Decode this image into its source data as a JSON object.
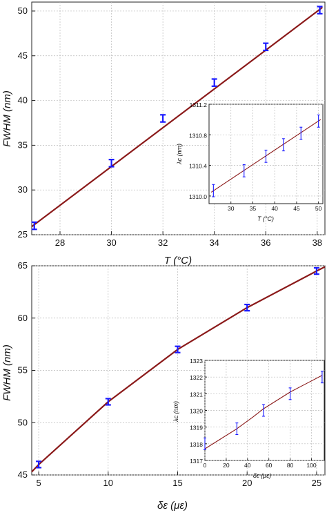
{
  "chart_data": [
    {
      "type": "line",
      "id": "top-main",
      "xlabel": "T (°C)",
      "ylabel": "FWHM (nm)",
      "xlim": [
        26.9,
        38.3
      ],
      "ylim": [
        25,
        51
      ],
      "xticks": [
        28,
        30,
        32,
        34,
        36,
        38
      ],
      "yticks": [
        25,
        30,
        35,
        40,
        45,
        50
      ],
      "grid": true,
      "fit": {
        "color": "#8b1a1a",
        "x": [
          26.9,
          38.2
        ],
        "y": [
          25.9,
          50.4
        ]
      },
      "series": [
        {
          "color": "#1a1aff",
          "x": [
            27,
            30,
            32,
            34,
            36,
            38.1
          ],
          "y": [
            26.0,
            33.0,
            38.0,
            42.0,
            46.0,
            50.1
          ],
          "err": [
            0.4,
            0.4,
            0.4,
            0.4,
            0.4,
            0.4
          ]
        }
      ]
    },
    {
      "type": "line",
      "id": "top-inset",
      "xlabel": "T (°C)",
      "ylabel": "λc (nm)",
      "xlim": [
        25,
        51
      ],
      "ylim": [
        1309.9,
        1311.2
      ],
      "xticks": [
        30,
        35,
        40,
        45,
        50
      ],
      "yticks": [
        1310.0,
        1310.4,
        1310.8,
        1311.2
      ],
      "ytick_labels": [
        "1310.0",
        "1310.4",
        "1310.8",
        "1311.2"
      ],
      "grid": true,
      "fit": {
        "color": "#8b1a1a",
        "x": [
          25.5,
          50.5
        ],
        "y": [
          1310.05,
          1311.0
        ]
      },
      "series": [
        {
          "color": "#1a1aff",
          "x": [
            26,
            33,
            38,
            42,
            46,
            50
          ],
          "y": [
            1310.07,
            1310.33,
            1310.52,
            1310.67,
            1310.82,
            1310.98
          ],
          "err": [
            0.08,
            0.08,
            0.08,
            0.08,
            0.08,
            0.08
          ]
        }
      ]
    },
    {
      "type": "line",
      "id": "bottom-main",
      "xlabel": "δε (με)",
      "ylabel": "FWHM (nm)",
      "xlim": [
        4.5,
        25.6
      ],
      "ylim": [
        45,
        65
      ],
      "xticks": [
        5,
        10,
        15,
        20,
        25
      ],
      "yticks": [
        45,
        50,
        55,
        60,
        65
      ],
      "grid": true,
      "fit": {
        "color": "#8b1a1a",
        "x": [
          4.5,
          5,
          10,
          15,
          20,
          25,
          25.6
        ],
        "y": [
          45.3,
          46.0,
          52.0,
          57.0,
          61.0,
          64.5,
          64.9
        ]
      },
      "series": [
        {
          "color": "#1a1aff",
          "x": [
            5,
            10,
            15,
            20,
            25
          ],
          "y": [
            46.0,
            52.0,
            57.0,
            61.0,
            64.5
          ],
          "err": [
            0.3,
            0.3,
            0.3,
            0.3,
            0.3
          ]
        }
      ]
    },
    {
      "type": "line",
      "id": "bottom-inset",
      "xlabel": "δε (με)",
      "ylabel": "λc (nm)",
      "xlim": [
        0,
        112
      ],
      "ylim": [
        1317,
        1323
      ],
      "xticks": [
        0,
        20,
        40,
        60,
        80,
        100
      ],
      "yticks": [
        1317,
        1318,
        1319,
        1320,
        1321,
        1322,
        1323
      ],
      "grid": true,
      "fit": {
        "color": "#8b1a1a",
        "x": [
          0,
          15,
          30,
          45,
          55,
          70,
          80,
          95,
          110
        ],
        "y": [
          1317.7,
          1318.3,
          1318.9,
          1319.6,
          1320.1,
          1320.7,
          1321.1,
          1321.6,
          1322.1
        ]
      },
      "series": [
        {
          "color": "#1a1aff",
          "x": [
            0,
            30,
            55,
            80,
            110
          ],
          "y": [
            1318.0,
            1318.9,
            1320.0,
            1321.0,
            1322.0
          ],
          "err": [
            0.35,
            0.35,
            0.35,
            0.35,
            0.35
          ]
        }
      ]
    }
  ]
}
